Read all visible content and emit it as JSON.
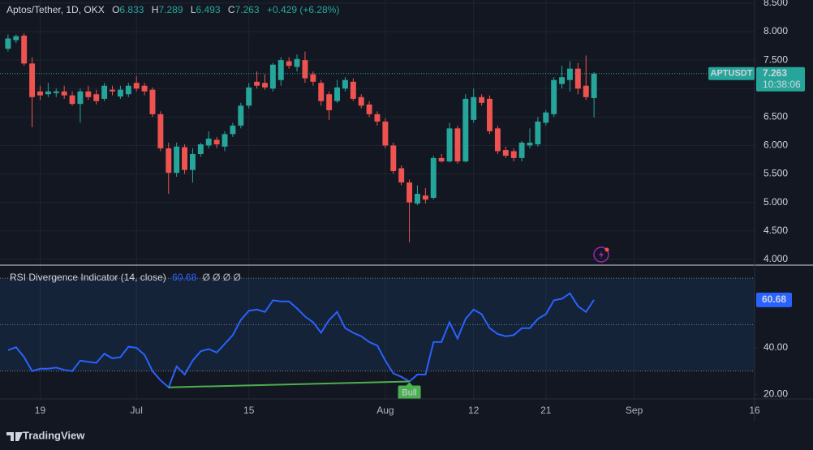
{
  "chart_data": [
    {
      "type": "candlestick",
      "title": "Aptos/Tether, 1D, OKX",
      "ohlc_labels": [
        "O",
        "H",
        "L",
        "C"
      ],
      "change": "+0.429 (+6.28%)",
      "symbol": "APTUSDT",
      "countdown": "10:38:06",
      "x": [
        "06-15",
        "06-16",
        "06-17",
        "06-18",
        "06-19",
        "06-20",
        "06-21",
        "06-22",
        "06-23",
        "06-24",
        "06-25",
        "06-26",
        "06-27",
        "06-28",
        "06-29",
        "06-30",
        "07-01",
        "07-02",
        "07-03",
        "07-04",
        "07-05",
        "07-06",
        "07-07",
        "07-08",
        "07-09",
        "07-10",
        "07-11",
        "07-12",
        "07-13",
        "07-14",
        "07-15",
        "07-16",
        "07-17",
        "07-18",
        "07-19",
        "07-20",
        "07-21",
        "07-22",
        "07-23",
        "07-24",
        "07-25",
        "07-26",
        "07-27",
        "07-28",
        "07-29",
        "07-30",
        "07-31",
        "08-01",
        "08-02",
        "08-03",
        "08-04",
        "08-05",
        "08-06",
        "08-07",
        "08-08",
        "08-09",
        "08-10",
        "08-11",
        "08-12",
        "08-13",
        "08-14",
        "08-15",
        "08-16",
        "08-17",
        "08-18",
        "08-19",
        "08-20",
        "08-21",
        "08-22",
        "08-23",
        "08-24",
        "08-25",
        "08-26",
        "08-27"
      ],
      "open": [
        7.7,
        7.85,
        7.93,
        7.44,
        6.95,
        6.9,
        6.92,
        6.95,
        6.88,
        6.73,
        6.95,
        6.9,
        6.82,
        6.98,
        6.86,
        6.9,
        7.1,
        7.05,
        6.98,
        6.55,
        5.95,
        5.52,
        5.97,
        5.57,
        5.85,
        6.0,
        6.1,
        5.98,
        6.2,
        6.35,
        6.7,
        7.12,
        7.1,
        7.0,
        7.15,
        7.48,
        7.38,
        7.5,
        7.25,
        7.1,
        6.9,
        6.78,
        7.0,
        7.12,
        6.85,
        6.72,
        6.55,
        6.42,
        6.0,
        5.6,
        5.35,
        4.98,
        5.12,
        5.08,
        5.78,
        5.72,
        6.3,
        5.72,
        6.45,
        6.85,
        6.82,
        6.3,
        5.92,
        5.9,
        5.78,
        6.0,
        6.02,
        6.4,
        6.55,
        7.08,
        7.15,
        7.35,
        7.05,
        6.833
      ],
      "high": [
        7.95,
        7.95,
        7.97,
        7.55,
        7.05,
        7.1,
        7.0,
        7.05,
        6.95,
        7.0,
        7.05,
        6.98,
        7.1,
        7.05,
        7.05,
        7.1,
        7.22,
        7.1,
        7.02,
        6.6,
        6.05,
        6.05,
        6.02,
        5.95,
        6.05,
        6.25,
        6.15,
        6.25,
        6.4,
        6.75,
        7.1,
        7.3,
        7.25,
        7.45,
        7.55,
        7.55,
        7.6,
        7.65,
        7.3,
        7.15,
        6.95,
        7.15,
        7.2,
        7.18,
        6.9,
        6.78,
        6.6,
        6.48,
        6.05,
        5.65,
        5.4,
        5.3,
        5.25,
        5.82,
        5.85,
        6.4,
        6.35,
        6.9,
        7.0,
        6.9,
        6.88,
        6.35,
        5.98,
        5.95,
        6.08,
        6.3,
        6.5,
        6.62,
        7.2,
        7.4,
        7.48,
        7.45,
        7.58,
        7.289
      ],
      "low": [
        7.65,
        7.8,
        7.4,
        6.32,
        6.8,
        6.85,
        6.85,
        6.82,
        6.7,
        6.4,
        6.8,
        6.72,
        6.78,
        6.88,
        6.82,
        6.85,
        6.95,
        6.88,
        6.5,
        5.9,
        5.15,
        5.45,
        5.5,
        5.35,
        5.8,
        5.95,
        5.95,
        5.9,
        6.15,
        6.3,
        6.65,
        7.0,
        6.98,
        6.95,
        7.05,
        7.35,
        7.3,
        7.1,
        7.05,
        6.7,
        6.45,
        6.75,
        6.95,
        6.78,
        6.65,
        6.5,
        6.35,
        5.95,
        5.5,
        5.3,
        4.3,
        4.95,
        4.98,
        5.05,
        5.7,
        5.7,
        5.68,
        5.7,
        6.4,
        6.7,
        6.2,
        5.85,
        5.78,
        5.72,
        5.72,
        5.95,
        5.98,
        6.35,
        6.5,
        7.0,
        6.95,
        6.9,
        6.8,
        6.493
      ],
      "close": [
        7.88,
        7.92,
        7.44,
        6.85,
        6.88,
        6.95,
        6.95,
        6.88,
        6.73,
        6.95,
        6.85,
        6.78,
        7.05,
        6.95,
        6.98,
        7.05,
        7.0,
        6.95,
        6.55,
        5.95,
        5.52,
        5.98,
        5.57,
        5.85,
        6.02,
        6.12,
        6.02,
        6.2,
        6.35,
        6.7,
        7.02,
        7.05,
        7.02,
        7.42,
        7.5,
        7.4,
        7.52,
        7.18,
        7.12,
        6.78,
        6.62,
        7.02,
        7.15,
        6.82,
        6.7,
        6.55,
        6.42,
        6.0,
        5.55,
        5.35,
        5.0,
        5.15,
        5.05,
        5.78,
        5.72,
        6.3,
        5.72,
        6.82,
        6.85,
        6.75,
        6.25,
        5.9,
        5.82,
        5.78,
        6.05,
        6.05,
        6.42,
        6.58,
        7.15,
        7.2,
        7.35,
        7.0,
        6.85,
        7.263
      ],
      "up_color": "#26a69a",
      "down_color": "#ef5350",
      "ylim": [
        3.912,
        8.556
      ],
      "yticks": [
        {
          "value": 4,
          "label": "4.000"
        },
        {
          "value": 4.5,
          "label": "4.500"
        },
        {
          "value": 5,
          "label": "5.000"
        },
        {
          "value": 5.5,
          "label": "5.500"
        },
        {
          "value": 6,
          "label": "6.000"
        },
        {
          "value": 6.5,
          "label": "6.500"
        },
        {
          "value": 7,
          "label": "7.000"
        },
        {
          "value": 7.5,
          "label": "7.500"
        },
        {
          "value": 8,
          "label": "8.000"
        },
        {
          "value": 8.5,
          "label": "8.500"
        }
      ],
      "xlim": [
        "06-14",
        "09-16"
      ],
      "xticks": [
        {
          "value": "06-19",
          "label": "19"
        },
        {
          "value": "07-01",
          "label": "Jul"
        },
        {
          "value": "07-15",
          "label": "15"
        },
        {
          "value": "08-01",
          "label": "Aug"
        },
        {
          "value": "08-12",
          "label": "12"
        },
        {
          "value": "08-21",
          "label": "21"
        },
        {
          "value": "09-01",
          "label": "Sep"
        },
        {
          "value": "09-16",
          "label": "16"
        }
      ],
      "grid": true
    },
    {
      "type": "line",
      "title": "RSI Divergence Indicator (14, close)",
      "flags": "Ø Ø Ø Ø",
      "color": "#2962ff",
      "values": [
        39,
        40.3,
        36,
        30,
        31,
        31,
        31.5,
        30.5,
        30,
        34.5,
        34,
        33.5,
        37.5,
        35.5,
        36,
        40.5,
        40,
        37,
        30,
        26,
        23,
        32,
        28.5,
        34.5,
        38.5,
        39.5,
        38,
        41.7,
        45.5,
        52,
        56,
        56.5,
        55.5,
        60.5,
        60,
        60,
        57,
        53.5,
        51,
        46.5,
        52,
        55.5,
        48.5,
        46.5,
        45,
        42.5,
        41,
        34.5,
        29,
        27.5,
        25.5,
        28.5,
        28.5,
        42.5,
        42.5,
        51,
        44,
        52.5,
        56.5,
        54.5,
        48.5,
        46,
        45,
        45.5,
        48.5,
        48.5,
        52.5,
        54.5,
        60.5,
        61.2,
        63.5,
        58,
        55.5,
        60.68
      ],
      "bands": [
        70,
        50,
        30
      ],
      "band_color": "#7e57c2",
      "divergences": [
        {
          "label": "Bull",
          "x": [
            "07-05",
            "08-04"
          ],
          "values": [
            23,
            25.5
          ],
          "color": "#4caf50"
        }
      ],
      "ylim": [
        18,
        75.3
      ],
      "yticks": [
        {
          "value": 20,
          "label": "20.00"
        },
        {
          "value": 40,
          "label": "40.00"
        }
      ]
    }
  ],
  "footer": {
    "brand": "TradingView"
  }
}
